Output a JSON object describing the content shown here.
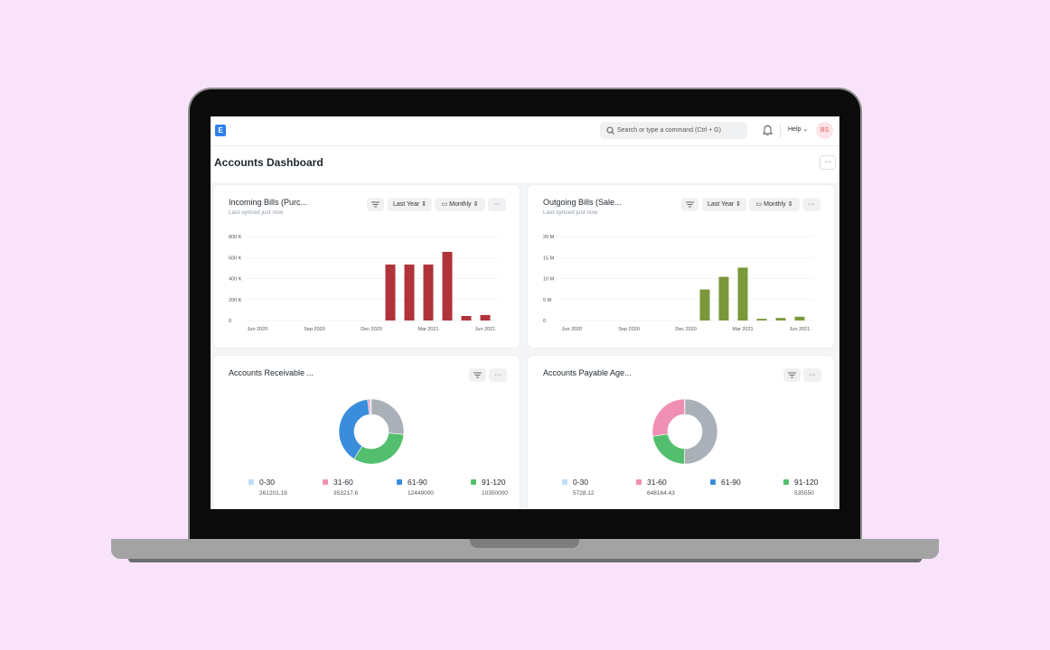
{
  "header": {
    "logo": "E",
    "search": "Search or type a command (Ctrl + G)",
    "help": "Help",
    "avatar": "BS"
  },
  "page": {
    "title": "Accounts Dashboard",
    "menu": "···"
  },
  "cards": [
    {
      "title": "Incoming Bills (Purc...",
      "subtitle": "Last synced just now",
      "filters": [
        "Last Year",
        "Monthly"
      ],
      "menu": "···",
      "chart": {
        "type": "bar",
        "color": "#b1333a",
        "categories": [
          "Jun 2020",
          null,
          null,
          "Sep 2020",
          null,
          null,
          "Dec 2020",
          null,
          null,
          "Mar 2021",
          null,
          null,
          "Jun 2021"
        ],
        "values": [
          0,
          0,
          0,
          0,
          0,
          0,
          0,
          533000,
          533000,
          533000,
          654000,
          43000,
          52000
        ],
        "ylim": [
          0,
          800000
        ],
        "yticks": [
          0,
          {
            "value": 200000,
            "label": "200 K"
          },
          {
            "value": 400000,
            "label": "400 K"
          },
          {
            "value": 600000,
            "label": "600 K"
          },
          {
            "value": 800000,
            "label": "800 K"
          }
        ],
        "grid": true
      }
    },
    {
      "title": "Outgoing Bills (Sale...",
      "subtitle": "Last synced just now",
      "filters": [
        "Last Year",
        "Monthly"
      ],
      "menu": "···",
      "chart": {
        "type": "bar",
        "color": "#7a983a",
        "categories": [
          "Jun 2020",
          null,
          null,
          "Sep 2020",
          null,
          null,
          "Dec 2020",
          null,
          null,
          "Mar 2021",
          null,
          null,
          "Jun 2021"
        ],
        "values": [
          0,
          0,
          0,
          0,
          0,
          0,
          0,
          7400000,
          10400000,
          12600000,
          400000,
          600000,
          900000
        ],
        "ylim": [
          0,
          20000000
        ],
        "yticks": [
          0,
          {
            "value": 5000000,
            "label": "5 M"
          },
          {
            "value": 10000000,
            "label": "10 M"
          },
          {
            "value": 15000000,
            "label": "15 M"
          },
          {
            "value": 20000000,
            "label": "20 M"
          }
        ],
        "grid": true
      }
    },
    {
      "title": "Accounts Receivable ...",
      "menu": "···",
      "chart": {
        "type": "donut",
        "categories": [
          "0-30",
          "31-60",
          "61-90",
          "91-120",
          null
        ],
        "values": [
          261201.19,
          353217.6,
          12449000,
          10350000,
          8400000
        ],
        "colors": [
          "#bddcf5",
          "#ef8fb4",
          "#3a8ddb",
          "#53bf6e",
          "#a9b0b8"
        ]
      }
    },
    {
      "title": "Accounts Payable Age...",
      "menu": "···",
      "chart": {
        "type": "donut",
        "categories": [
          "0-30",
          "31-60",
          "61-90",
          "91-120",
          null
        ],
        "values": [
          5728.12,
          648164.43,
          null,
          535550,
          1200000
        ],
        "colors": [
          "#bddcf5",
          "#ef8fb4",
          "#3a8ddb",
          "#53bf6e",
          "#a9b0b8"
        ]
      }
    }
  ]
}
